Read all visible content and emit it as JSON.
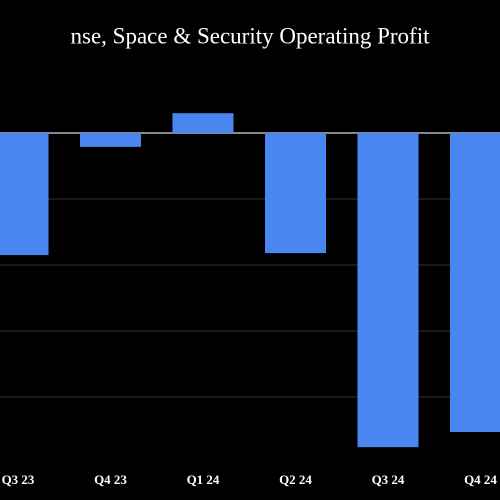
{
  "chart_data": {
    "type": "bar",
    "title": "nse, Space & Security Operating Profit",
    "categories": [
      "Q3 23",
      "Q4 23",
      "Q1 24",
      "Q2 24",
      "Q3 24",
      "Q4 24"
    ],
    "values": [
      -185,
      -21,
      30,
      -182,
      -476,
      -453
    ],
    "color": "#4a86f0",
    "ylim": [
      -500,
      100
    ],
    "yticks": [
      -400,
      -300,
      -200,
      -100,
      0
    ],
    "grid": true
  }
}
